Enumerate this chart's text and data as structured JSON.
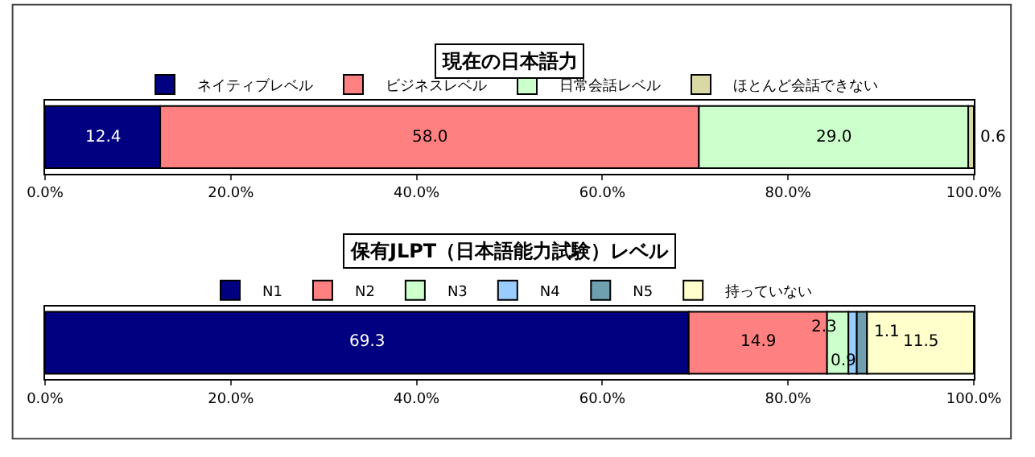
{
  "chart_data": [
    {
      "type": "bar",
      "title": "現在の日本語力",
      "orientation": "horizontal",
      "stacked": true,
      "categories": [
        null
      ],
      "xlim": [
        0,
        100
      ],
      "xticks": [
        {
          "value": 0,
          "label": "0.0%"
        },
        {
          "value": 20,
          "label": "20.0%"
        },
        {
          "value": 40,
          "label": "40.0%"
        },
        {
          "value": 60,
          "label": "60.0%"
        },
        {
          "value": 80,
          "label": "80.0%"
        },
        {
          "value": 100,
          "label": "100.0%"
        }
      ],
      "legend": "top",
      "series": [
        {
          "name": "ネイティブレベル",
          "color": "#000080",
          "values": [
            12.4
          ],
          "value_labels": [
            "12.4"
          ]
        },
        {
          "name": "ビジネスレベル",
          "color": "#ff8080",
          "values": [
            58.0
          ],
          "value_labels": [
            "58.0"
          ]
        },
        {
          "name": "日常会話レベル",
          "color": "#ccffcc",
          "values": [
            29.0
          ],
          "value_labels": [
            "29.0"
          ]
        },
        {
          "name": "ほとんど会話できない",
          "color": "#d9d9a6",
          "values": [
            0.6
          ],
          "value_labels": [
            "0.6"
          ]
        }
      ]
    },
    {
      "type": "bar",
      "title": "保有JLPT（日本語能力試験）レベル",
      "orientation": "horizontal",
      "stacked": true,
      "categories": [
        null
      ],
      "xlim": [
        0,
        100
      ],
      "xticks": [
        {
          "value": 0,
          "label": "0.0%"
        },
        {
          "value": 20,
          "label": "20.0%"
        },
        {
          "value": 40,
          "label": "40.0%"
        },
        {
          "value": 60,
          "label": "60.0%"
        },
        {
          "value": 80,
          "label": "80.0%"
        },
        {
          "value": 100,
          "label": "100.0%"
        }
      ],
      "legend": "top",
      "series": [
        {
          "name": "N1",
          "color": "#000080",
          "values": [
            69.3
          ],
          "value_labels": [
            "69.3"
          ]
        },
        {
          "name": "N2",
          "color": "#ff8080",
          "values": [
            14.9
          ],
          "value_labels": [
            "14.9"
          ]
        },
        {
          "name": "N3",
          "color": "#ccffcc",
          "values": [
            2.3
          ],
          "value_labels": [
            "2.3"
          ]
        },
        {
          "name": "N4",
          "color": "#99ccff",
          "values": [
            0.9
          ],
          "value_labels": [
            "0.9"
          ]
        },
        {
          "name": "N5",
          "color": "#6fa0b0",
          "values": [
            1.1
          ],
          "value_labels": [
            "1.1"
          ]
        },
        {
          "name": "持っていない",
          "color": "#ffffcc",
          "values": [
            11.5
          ],
          "value_labels": [
            "11.5"
          ]
        }
      ]
    }
  ]
}
